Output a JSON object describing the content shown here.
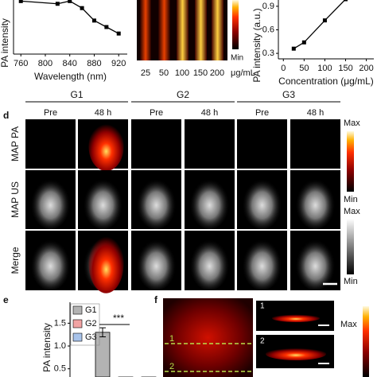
{
  "chart_data": [
    {
      "type": "line",
      "xlabel": "Wavelength (nm)",
      "ylabel": "PA intensity",
      "x": [
        760,
        820,
        840,
        860,
        880,
        900,
        920
      ],
      "values": [
        0.98,
        0.93,
        0.98,
        0.85,
        0.62,
        0.5,
        0.38
      ],
      "xlim": [
        748,
        934
      ],
      "xticks": [
        760,
        800,
        840,
        880,
        920
      ],
      "ylim": [
        0,
        1
      ],
      "color": "#000000"
    },
    {
      "type": "line",
      "xlabel": "Concentration (μg/mL)",
      "ylabel": "PA intensity (a.u.)",
      "x": [
        25,
        50,
        100,
        150
      ],
      "values": [
        0.36,
        0.44,
        0.72,
        0.99
      ],
      "xlim": [
        -12,
        218
      ],
      "xticks": [
        0,
        50,
        100,
        150,
        200
      ],
      "ylim": [
        0.23,
        0.98
      ],
      "yticks": [
        0.3,
        0.6,
        0.9
      ],
      "color": "#000000"
    },
    {
      "type": "bar",
      "ylabel": "PA intensity",
      "series": [
        {
          "name": "G1",
          "color": "#b3b3b3",
          "values": [
            1.3
          ],
          "errors": [
            0.1
          ]
        },
        {
          "name": "G2",
          "color": "#f2a3a3",
          "values": [
            0.25
          ],
          "errors": [
            0.05
          ]
        },
        {
          "name": "G3",
          "color": "#a8c3ea",
          "values": [
            0.25
          ],
          "errors": [
            0.05
          ]
        }
      ],
      "ylim": [
        0.32,
        1.96
      ],
      "yticks": [
        0.5,
        {
          "value": 1.0,
          "label": "1.0"
        },
        1.5
      ],
      "annotations": [
        "***"
      ]
    }
  ],
  "figure": {
    "strips": {
      "labels": [
        "25",
        "50",
        "100",
        "150",
        "200"
      ],
      "unit": "μg/mL",
      "colorbar_min": "Min"
    },
    "panel_d": {
      "letter": "d",
      "groups": [
        "G1",
        "G2",
        "G3"
      ],
      "columns": [
        "Pre",
        "48 h",
        "Pre",
        "48 h",
        "Pre",
        "48 h"
      ],
      "rows": [
        "MAP PA",
        "MAP US",
        "Merge"
      ],
      "pa_bar": [
        "Max",
        "Min"
      ],
      "us_bar": [
        "Max",
        "Min"
      ]
    },
    "panel_e": {
      "letter": "e"
    },
    "panel_f": {
      "letter": "f",
      "lines": [
        "1",
        "2"
      ],
      "sections": [
        "1",
        "2"
      ],
      "colorbar_max": "Max"
    }
  }
}
